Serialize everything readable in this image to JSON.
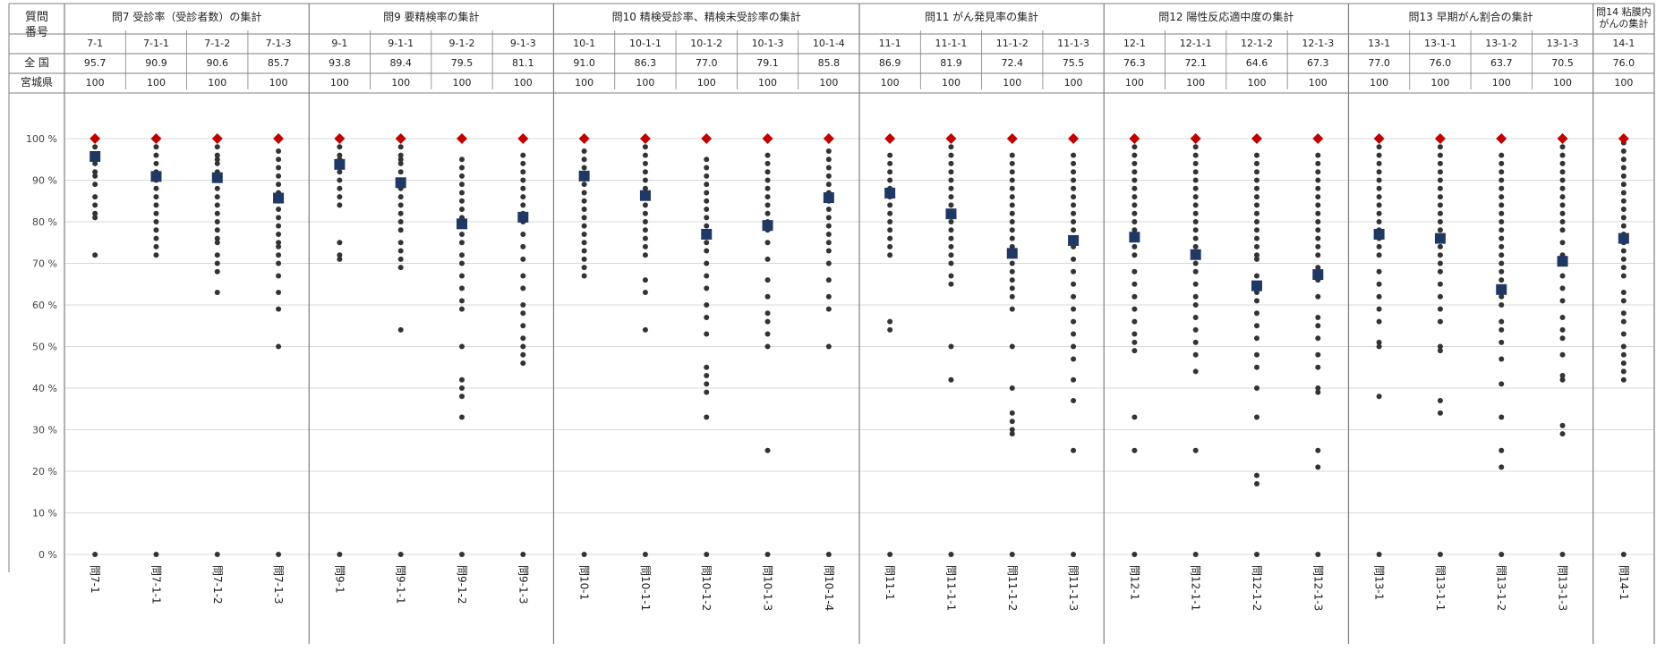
{
  "header": {
    "question_label_line1": "質問",
    "question_label_line2": "番号",
    "row_national": "全 国",
    "row_miyagi": "宮城県",
    "groups": [
      {
        "title": "問7 受診率（受診者数）の集計",
        "columns": [
          "7-1",
          "7-1-1",
          "7-1-2",
          "7-1-3"
        ]
      },
      {
        "title": "問9 要精検率の集計",
        "columns": [
          "9-1",
          "9-1-1",
          "9-1-2",
          "9-1-3"
        ]
      },
      {
        "title": "問10 精検受診率、精検未受診率の集計",
        "columns": [
          "10-1",
          "10-1-1",
          "10-1-2",
          "10-1-3",
          "10-1-4"
        ]
      },
      {
        "title": "問11 がん発見率の集計",
        "columns": [
          "11-1",
          "11-1-1",
          "11-1-2",
          "11-1-3"
        ]
      },
      {
        "title": "問12 陽性反応適中度の集計",
        "columns": [
          "12-1",
          "12-1-1",
          "12-1-2",
          "12-1-3"
        ]
      },
      {
        "title": "問13 早期がん割合の集計",
        "columns": [
          "13-1",
          "13-1-1",
          "13-1-2",
          "13-1-3"
        ]
      },
      {
        "title_line1": "問14 粘膜内",
        "title_line2": "がんの集計",
        "columns": [
          "14-1"
        ]
      }
    ],
    "national_values": [
      "95.7",
      "90.9",
      "90.6",
      "85.7",
      "93.8",
      "89.4",
      "79.5",
      "81.1",
      "91.0",
      "86.3",
      "77.0",
      "79.1",
      "85.8",
      "86.9",
      "81.9",
      "72.4",
      "75.5",
      "76.3",
      "72.1",
      "64.6",
      "67.3",
      "77.0",
      "76.0",
      "63.7",
      "70.5",
      "76.0"
    ],
    "miyagi_values": [
      "100",
      "100",
      "100",
      "100",
      "100",
      "100",
      "100",
      "100",
      "100",
      "100",
      "100",
      "100",
      "100",
      "100",
      "100",
      "100",
      "100",
      "100",
      "100",
      "100",
      "100",
      "100",
      "100",
      "100",
      "100",
      "100"
    ]
  },
  "colors": {
    "national_marker": "#1f3864",
    "miyagi_marker": "#c00000",
    "dot": "#333333",
    "grid": "#d9d9d9",
    "border": "#7f7f7f"
  },
  "chart_data": {
    "type": "scatter",
    "ylim": [
      0,
      100
    ],
    "y_ticks": [
      "100 %",
      "90 %",
      "80 %",
      "70 %",
      "60 %",
      "50 %",
      "40 %",
      "30 %",
      "20 %",
      "10 %",
      "0 %"
    ],
    "categories": [
      "問7-1",
      "問7-1-1",
      "問7-1-2",
      "問7-1-3",
      "問9-1",
      "問9-1-1",
      "問9-1-2",
      "問9-1-3",
      "問10-1",
      "問10-1-1",
      "問10-1-2",
      "問10-1-3",
      "問10-1-4",
      "問11-1",
      "問11-1-1",
      "問11-1-2",
      "問11-1-3",
      "問12-1",
      "問12-1-1",
      "問12-1-2",
      "問12-1-3",
      "問13-1",
      "問13-1-1",
      "問13-1-2",
      "問13-1-3",
      "問14-1"
    ],
    "national": [
      95.7,
      90.9,
      90.6,
      85.7,
      93.8,
      89.4,
      79.5,
      81.1,
      91.0,
      86.3,
      77.0,
      79.1,
      85.8,
      86.9,
      81.9,
      72.4,
      75.5,
      76.3,
      72.1,
      64.6,
      67.3,
      77.0,
      76.0,
      63.7,
      70.5,
      76.0
    ],
    "miyagi": [
      100,
      100,
      100,
      100,
      100,
      100,
      100,
      100,
      100,
      100,
      100,
      100,
      100,
      100,
      100,
      100,
      100,
      100,
      100,
      100,
      100,
      100,
      100,
      100,
      100,
      100
    ],
    "dots": [
      [
        98,
        96,
        94,
        92,
        91,
        89,
        86,
        84,
        82,
        81,
        72,
        0
      ],
      [
        98,
        96,
        94,
        92,
        90,
        88,
        86,
        84,
        82,
        80,
        78,
        76,
        74,
        72,
        0
      ],
      [
        98,
        96,
        95,
        94,
        92,
        90,
        88,
        86,
        84,
        82,
        80,
        78,
        76,
        75,
        72,
        70,
        68,
        63,
        0
      ],
      [
        97,
        95,
        93,
        91,
        89,
        87,
        85,
        83,
        81,
        79,
        77,
        75,
        74,
        72,
        70,
        67,
        63,
        59,
        50,
        0
      ],
      [
        98,
        96,
        95,
        94,
        92,
        90,
        88,
        86,
        84,
        75,
        72,
        71,
        0
      ],
      [
        98,
        96,
        95,
        94,
        92,
        90,
        88,
        86,
        84,
        82,
        80,
        78,
        75,
        73,
        71,
        69,
        54,
        0
      ],
      [
        95,
        93,
        91,
        89,
        87,
        85,
        83,
        81,
        79,
        77,
        75,
        72,
        70,
        67,
        64,
        61,
        59,
        50,
        42,
        40,
        38,
        33,
        0
      ],
      [
        96,
        94,
        92,
        90,
        88,
        86,
        84,
        82,
        80,
        77,
        74,
        71,
        67,
        64,
        60,
        58,
        55,
        52,
        50,
        48,
        46,
        0
      ],
      [
        97,
        95,
        93,
        91,
        89,
        87,
        85,
        83,
        81,
        79,
        77,
        75,
        73,
        71,
        69,
        67,
        0
      ],
      [
        98,
        96,
        94,
        92,
        90,
        88,
        86,
        84,
        82,
        80,
        78,
        76,
        74,
        72,
        66,
        63,
        54,
        0
      ],
      [
        95,
        93,
        91,
        89,
        87,
        85,
        83,
        81,
        79,
        77,
        75,
        73,
        70,
        67,
        64,
        60,
        57,
        53,
        45,
        43,
        41,
        39,
        33,
        0
      ],
      [
        96,
        94,
        92,
        90,
        88,
        86,
        84,
        82,
        80,
        78,
        75,
        71,
        66,
        62,
        58,
        56,
        53,
        50,
        25,
        0
      ],
      [
        97,
        95,
        93,
        91,
        89,
        87,
        85,
        83,
        81,
        79,
        77,
        75,
        73,
        70,
        66,
        62,
        59,
        50,
        0
      ],
      [
        96,
        94,
        92,
        90,
        88,
        86,
        84,
        82,
        80,
        78,
        76,
        74,
        72,
        56,
        54,
        0
      ],
      [
        98,
        96,
        94,
        92,
        90,
        88,
        86,
        84,
        82,
        80,
        78,
        76,
        74,
        72,
        70,
        67,
        65,
        50,
        42,
        0
      ],
      [
        96,
        94,
        92,
        90,
        88,
        86,
        84,
        82,
        80,
        78,
        76,
        74,
        72,
        70,
        68,
        66,
        64,
        62,
        59,
        50,
        40,
        34,
        32,
        30,
        29,
        0
      ],
      [
        96,
        94,
        92,
        90,
        88,
        86,
        84,
        82,
        80,
        78,
        76,
        74,
        71,
        68,
        65,
        62,
        59,
        56,
        53,
        50,
        47,
        42,
        37,
        25,
        0
      ],
      [
        98,
        96,
        94,
        92,
        90,
        88,
        86,
        84,
        82,
        80,
        78,
        76,
        74,
        72,
        68,
        65,
        62,
        59,
        56,
        53,
        51,
        49,
        33,
        25,
        0
      ],
      [
        98,
        96,
        94,
        92,
        90,
        88,
        86,
        84,
        82,
        80,
        78,
        76,
        74,
        72,
        70,
        68,
        65,
        62,
        60,
        57,
        54,
        51,
        48,
        44,
        25,
        0
      ],
      [
        96,
        94,
        92,
        90,
        88,
        86,
        84,
        82,
        80,
        78,
        76,
        74,
        72,
        71,
        67,
        64,
        63,
        61,
        58,
        55,
        52,
        48,
        45,
        40,
        33,
        19,
        17,
        0
      ],
      [
        96,
        94,
        92,
        90,
        88,
        86,
        84,
        82,
        80,
        78,
        76,
        74,
        72,
        69,
        66,
        62,
        57,
        55,
        52,
        48,
        45,
        40,
        39,
        25,
        21,
        0
      ],
      [
        98,
        96,
        94,
        92,
        90,
        88,
        86,
        84,
        82,
        80,
        78,
        76,
        74,
        72,
        68,
        65,
        62,
        59,
        56,
        51,
        50,
        38,
        0
      ],
      [
        98,
        96,
        94,
        92,
        90,
        88,
        86,
        84,
        82,
        80,
        78,
        76,
        74,
        72,
        70,
        68,
        65,
        62,
        59,
        56,
        50,
        49,
        37,
        34,
        0
      ],
      [
        96,
        94,
        92,
        90,
        88,
        86,
        84,
        82,
        80,
        78,
        76,
        74,
        72,
        70,
        68,
        66,
        62,
        60,
        56,
        54,
        51,
        47,
        41,
        33,
        25,
        21,
        0
      ],
      [
        98,
        96,
        94,
        92,
        90,
        88,
        86,
        84,
        82,
        80,
        78,
        75,
        72,
        70,
        67,
        64,
        61,
        57,
        54,
        52,
        48,
        43,
        42,
        31,
        29,
        0
      ],
      [
        99,
        97,
        95,
        93,
        91,
        89,
        87,
        85,
        83,
        81,
        79,
        77,
        75,
        73,
        71,
        69,
        67,
        63,
        61,
        58,
        56,
        53,
        50,
        48,
        46,
        44,
        42,
        0
      ]
    ]
  }
}
